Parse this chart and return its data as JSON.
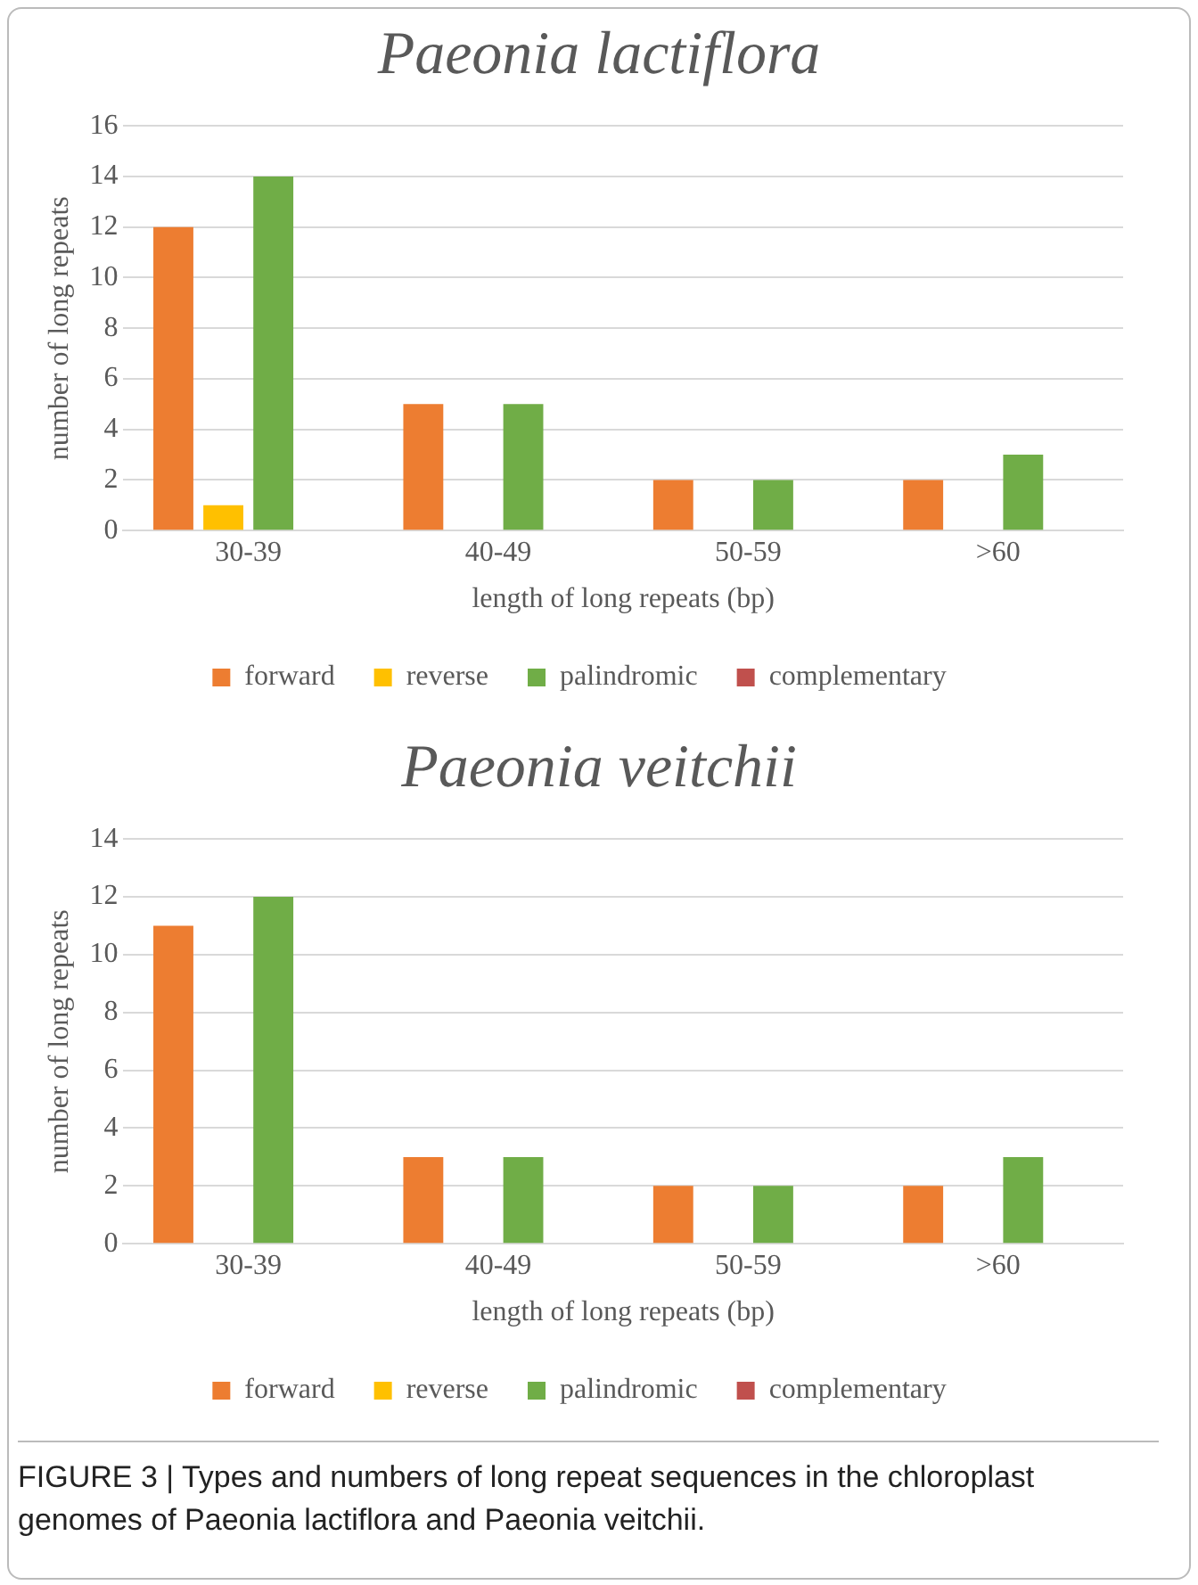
{
  "chart_data": [
    {
      "type": "bar",
      "title": "Paeonia lactiflora",
      "xlabel": "length of long repeats (bp)",
      "ylabel": "number of long repeats",
      "categories": [
        "30-39",
        "40-49",
        "50-59",
        ">60"
      ],
      "series": [
        {
          "name": "forward",
          "color": "#ed7d31",
          "values": [
            12,
            5,
            2,
            2
          ]
        },
        {
          "name": "reverse",
          "color": "#ffc000",
          "values": [
            1,
            0,
            0,
            0
          ]
        },
        {
          "name": "palindromic",
          "color": "#70ad47",
          "values": [
            14,
            5,
            2,
            3
          ]
        },
        {
          "name": "complementary",
          "color": "#c0504d",
          "values": [
            0,
            0,
            0,
            0
          ]
        }
      ],
      "ylim": [
        0,
        16
      ],
      "yticks": [
        0,
        2,
        4,
        6,
        8,
        10,
        12,
        14,
        16
      ],
      "grid": "y",
      "legend": "bottom"
    },
    {
      "type": "bar",
      "title": "Paeonia veitchii",
      "xlabel": "length of long repeats (bp)",
      "ylabel": "number of long repeats",
      "categories": [
        "30-39",
        "40-49",
        "50-59",
        ">60"
      ],
      "series": [
        {
          "name": "forward",
          "color": "#ed7d31",
          "values": [
            11,
            3,
            2,
            2
          ]
        },
        {
          "name": "reverse",
          "color": "#ffc000",
          "values": [
            0,
            0,
            0,
            0
          ]
        },
        {
          "name": "palindromic",
          "color": "#70ad47",
          "values": [
            12,
            3,
            2,
            3
          ]
        },
        {
          "name": "complementary",
          "color": "#c0504d",
          "values": [
            0,
            0,
            0,
            0
          ]
        }
      ],
      "ylim": [
        0,
        14
      ],
      "yticks": [
        0,
        2,
        4,
        6,
        8,
        10,
        12,
        14
      ],
      "grid": "y",
      "legend": "bottom",
      "annotations": [
        "FIGURE 3 | Types and numbers of long repeat sequences in the chloroplast genomes of Paeonia lactiflora and Paeonia veitchii."
      ]
    }
  ]
}
